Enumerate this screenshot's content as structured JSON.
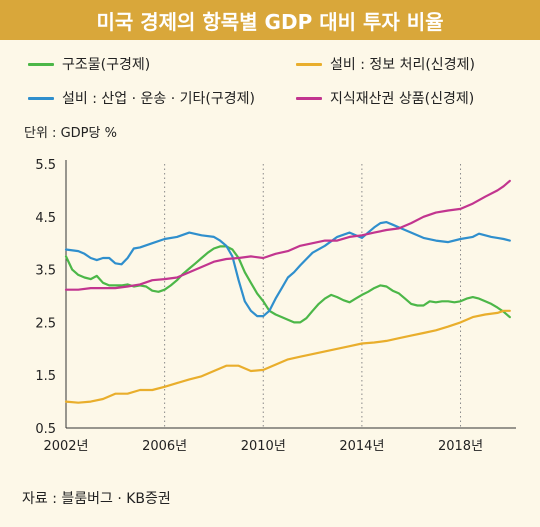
{
  "title": "미국 경제의 항목별 GDP 대비 투자 비율",
  "unit_label": "단위 : GDP당 %",
  "source": "자료 : 블룸버그 · KB증권",
  "chart_data": {
    "type": "line",
    "title": "미국 경제의 항목별 GDP 대비 투자 비율",
    "xlabel": "",
    "ylabel": "단위 : GDP당 %",
    "xlim": [
      2002.0,
      2020.25
    ],
    "ylim": [
      0.5,
      5.5
    ],
    "x_ticks": [
      2002,
      2006,
      2010,
      2014,
      2018
    ],
    "x_tick_labels": [
      "2002년",
      "2006년",
      "2010년",
      "2014년",
      "2018년"
    ],
    "y_ticks": [
      0.5,
      1.5,
      2.5,
      3.5,
      4.5,
      5.5
    ],
    "y_tick_labels": [
      "0.5",
      "1.5",
      "2.5",
      "3.5",
      "4.5",
      "5.5"
    ],
    "grid": "vertical-dotted",
    "legend_placement": "top",
    "series": [
      {
        "name": "구조물(구경제)",
        "color": "#4cb748",
        "points": [
          [
            2002.0,
            3.75
          ],
          [
            2002.25,
            3.5
          ],
          [
            2002.5,
            3.4
          ],
          [
            2002.75,
            3.35
          ],
          [
            2003.0,
            3.32
          ],
          [
            2003.25,
            3.38
          ],
          [
            2003.5,
            3.25
          ],
          [
            2003.75,
            3.2
          ],
          [
            2004.0,
            3.2
          ],
          [
            2004.25,
            3.2
          ],
          [
            2004.5,
            3.22
          ],
          [
            2004.75,
            3.18
          ],
          [
            2005.0,
            3.2
          ],
          [
            2005.25,
            3.18
          ],
          [
            2005.5,
            3.1
          ],
          [
            2005.75,
            3.08
          ],
          [
            2006.0,
            3.12
          ],
          [
            2006.25,
            3.2
          ],
          [
            2006.5,
            3.3
          ],
          [
            2006.75,
            3.42
          ],
          [
            2007.0,
            3.52
          ],
          [
            2007.25,
            3.62
          ],
          [
            2007.5,
            3.72
          ],
          [
            2007.75,
            3.82
          ],
          [
            2008.0,
            3.9
          ],
          [
            2008.25,
            3.94
          ],
          [
            2008.5,
            3.94
          ],
          [
            2008.75,
            3.88
          ],
          [
            2009.0,
            3.72
          ],
          [
            2009.25,
            3.45
          ],
          [
            2009.5,
            3.25
          ],
          [
            2009.75,
            3.05
          ],
          [
            2010.0,
            2.9
          ],
          [
            2010.25,
            2.72
          ],
          [
            2010.5,
            2.65
          ],
          [
            2010.75,
            2.6
          ],
          [
            2011.0,
            2.55
          ],
          [
            2011.25,
            2.5
          ],
          [
            2011.5,
            2.5
          ],
          [
            2011.75,
            2.58
          ],
          [
            2012.0,
            2.72
          ],
          [
            2012.25,
            2.85
          ],
          [
            2012.5,
            2.95
          ],
          [
            2012.75,
            3.02
          ],
          [
            2013.0,
            2.98
          ],
          [
            2013.25,
            2.92
          ],
          [
            2013.5,
            2.88
          ],
          [
            2013.75,
            2.95
          ],
          [
            2014.0,
            3.02
          ],
          [
            2014.25,
            3.08
          ],
          [
            2014.5,
            3.15
          ],
          [
            2014.75,
            3.2
          ],
          [
            2015.0,
            3.18
          ],
          [
            2015.25,
            3.1
          ],
          [
            2015.5,
            3.05
          ],
          [
            2015.75,
            2.95
          ],
          [
            2016.0,
            2.85
          ],
          [
            2016.25,
            2.82
          ],
          [
            2016.5,
            2.82
          ],
          [
            2016.75,
            2.9
          ],
          [
            2017.0,
            2.88
          ],
          [
            2017.25,
            2.9
          ],
          [
            2017.5,
            2.9
          ],
          [
            2017.75,
            2.88
          ],
          [
            2018.0,
            2.9
          ],
          [
            2018.25,
            2.95
          ],
          [
            2018.5,
            2.98
          ],
          [
            2018.75,
            2.95
          ],
          [
            2019.0,
            2.9
          ],
          [
            2019.25,
            2.85
          ],
          [
            2019.5,
            2.78
          ],
          [
            2019.75,
            2.7
          ],
          [
            2020.0,
            2.6
          ]
        ]
      },
      {
        "name": "설비 : 정보 처리(신경제)",
        "color": "#e9ae2c",
        "points": [
          [
            2002.0,
            1.0
          ],
          [
            2002.5,
            0.98
          ],
          [
            2003.0,
            1.0
          ],
          [
            2003.5,
            1.05
          ],
          [
            2004.0,
            1.15
          ],
          [
            2004.5,
            1.15
          ],
          [
            2005.0,
            1.22
          ],
          [
            2005.5,
            1.22
          ],
          [
            2006.0,
            1.28
          ],
          [
            2006.5,
            1.35
          ],
          [
            2007.0,
            1.42
          ],
          [
            2007.5,
            1.48
          ],
          [
            2008.0,
            1.58
          ],
          [
            2008.5,
            1.68
          ],
          [
            2009.0,
            1.68
          ],
          [
            2009.5,
            1.58
          ],
          [
            2010.0,
            1.6
          ],
          [
            2010.5,
            1.7
          ],
          [
            2011.0,
            1.8
          ],
          [
            2011.5,
            1.85
          ],
          [
            2012.0,
            1.9
          ],
          [
            2012.5,
            1.95
          ],
          [
            2013.0,
            2.0
          ],
          [
            2013.5,
            2.05
          ],
          [
            2014.0,
            2.1
          ],
          [
            2014.5,
            2.12
          ],
          [
            2015.0,
            2.15
          ],
          [
            2015.5,
            2.2
          ],
          [
            2016.0,
            2.25
          ],
          [
            2016.5,
            2.3
          ],
          [
            2017.0,
            2.35
          ],
          [
            2017.5,
            2.42
          ],
          [
            2018.0,
            2.5
          ],
          [
            2018.5,
            2.6
          ],
          [
            2019.0,
            2.65
          ],
          [
            2019.5,
            2.68
          ],
          [
            2019.75,
            2.72
          ],
          [
            2020.0,
            2.72
          ]
        ]
      },
      {
        "name": "설비 : 산업 · 운송 · 기타(구경제)",
        "color": "#2f8fcd",
        "points": [
          [
            2002.0,
            3.88
          ],
          [
            2002.5,
            3.85
          ],
          [
            2002.75,
            3.8
          ],
          [
            2003.0,
            3.72
          ],
          [
            2003.25,
            3.68
          ],
          [
            2003.5,
            3.72
          ],
          [
            2003.75,
            3.72
          ],
          [
            2004.0,
            3.62
          ],
          [
            2004.25,
            3.6
          ],
          [
            2004.5,
            3.72
          ],
          [
            2004.75,
            3.9
          ],
          [
            2005.0,
            3.92
          ],
          [
            2005.5,
            4.0
          ],
          [
            2006.0,
            4.08
          ],
          [
            2006.5,
            4.12
          ],
          [
            2007.0,
            4.2
          ],
          [
            2007.5,
            4.15
          ],
          [
            2008.0,
            4.12
          ],
          [
            2008.25,
            4.05
          ],
          [
            2008.5,
            3.95
          ],
          [
            2008.75,
            3.75
          ],
          [
            2009.0,
            3.3
          ],
          [
            2009.25,
            2.9
          ],
          [
            2009.5,
            2.72
          ],
          [
            2009.75,
            2.62
          ],
          [
            2010.0,
            2.62
          ],
          [
            2010.25,
            2.72
          ],
          [
            2010.5,
            2.95
          ],
          [
            2010.75,
            3.15
          ],
          [
            2011.0,
            3.35
          ],
          [
            2011.25,
            3.45
          ],
          [
            2011.5,
            3.58
          ],
          [
            2011.75,
            3.7
          ],
          [
            2012.0,
            3.82
          ],
          [
            2012.5,
            3.95
          ],
          [
            2013.0,
            4.12
          ],
          [
            2013.5,
            4.2
          ],
          [
            2013.75,
            4.15
          ],
          [
            2014.0,
            4.1
          ],
          [
            2014.25,
            4.2
          ],
          [
            2014.5,
            4.3
          ],
          [
            2014.75,
            4.38
          ],
          [
            2015.0,
            4.4
          ],
          [
            2015.25,
            4.35
          ],
          [
            2015.5,
            4.3
          ],
          [
            2015.75,
            4.25
          ],
          [
            2016.0,
            4.2
          ],
          [
            2016.5,
            4.1
          ],
          [
            2017.0,
            4.05
          ],
          [
            2017.5,
            4.02
          ],
          [
            2018.0,
            4.08
          ],
          [
            2018.5,
            4.12
          ],
          [
            2018.75,
            4.18
          ],
          [
            2019.0,
            4.15
          ],
          [
            2019.25,
            4.12
          ],
          [
            2019.5,
            4.1
          ],
          [
            2019.75,
            4.08
          ],
          [
            2020.0,
            4.05
          ]
        ]
      },
      {
        "name": "지식재산권 상품(신경제)",
        "color": "#c2358f",
        "points": [
          [
            2002.0,
            3.12
          ],
          [
            2002.5,
            3.12
          ],
          [
            2003.0,
            3.15
          ],
          [
            2003.5,
            3.15
          ],
          [
            2004.0,
            3.15
          ],
          [
            2004.5,
            3.18
          ],
          [
            2005.0,
            3.22
          ],
          [
            2005.5,
            3.3
          ],
          [
            2006.0,
            3.32
          ],
          [
            2006.5,
            3.35
          ],
          [
            2007.0,
            3.45
          ],
          [
            2007.5,
            3.55
          ],
          [
            2008.0,
            3.65
          ],
          [
            2008.5,
            3.7
          ],
          [
            2009.0,
            3.72
          ],
          [
            2009.5,
            3.75
          ],
          [
            2010.0,
            3.72
          ],
          [
            2010.5,
            3.8
          ],
          [
            2011.0,
            3.85
          ],
          [
            2011.5,
            3.95
          ],
          [
            2012.0,
            4.0
          ],
          [
            2012.5,
            4.05
          ],
          [
            2013.0,
            4.05
          ],
          [
            2013.5,
            4.12
          ],
          [
            2014.0,
            4.15
          ],
          [
            2014.5,
            4.2
          ],
          [
            2015.0,
            4.25
          ],
          [
            2015.5,
            4.28
          ],
          [
            2016.0,
            4.38
          ],
          [
            2016.5,
            4.5
          ],
          [
            2017.0,
            4.58
          ],
          [
            2017.5,
            4.62
          ],
          [
            2018.0,
            4.65
          ],
          [
            2018.5,
            4.75
          ],
          [
            2019.0,
            4.88
          ],
          [
            2019.5,
            5.0
          ],
          [
            2019.75,
            5.08
          ],
          [
            2020.0,
            5.18
          ]
        ]
      }
    ]
  },
  "legend": {
    "items": [
      {
        "label": "구조물(구경제)",
        "color": "#4cb748"
      },
      {
        "label": "설비 : 정보 처리(신경제)",
        "color": "#e9ae2c"
      },
      {
        "label": "설비 : 산업 · 운송 · 기타(구경제)",
        "color": "#2f8fcd"
      },
      {
        "label": "지식재산권 상품(신경제)",
        "color": "#c2358f"
      }
    ]
  }
}
